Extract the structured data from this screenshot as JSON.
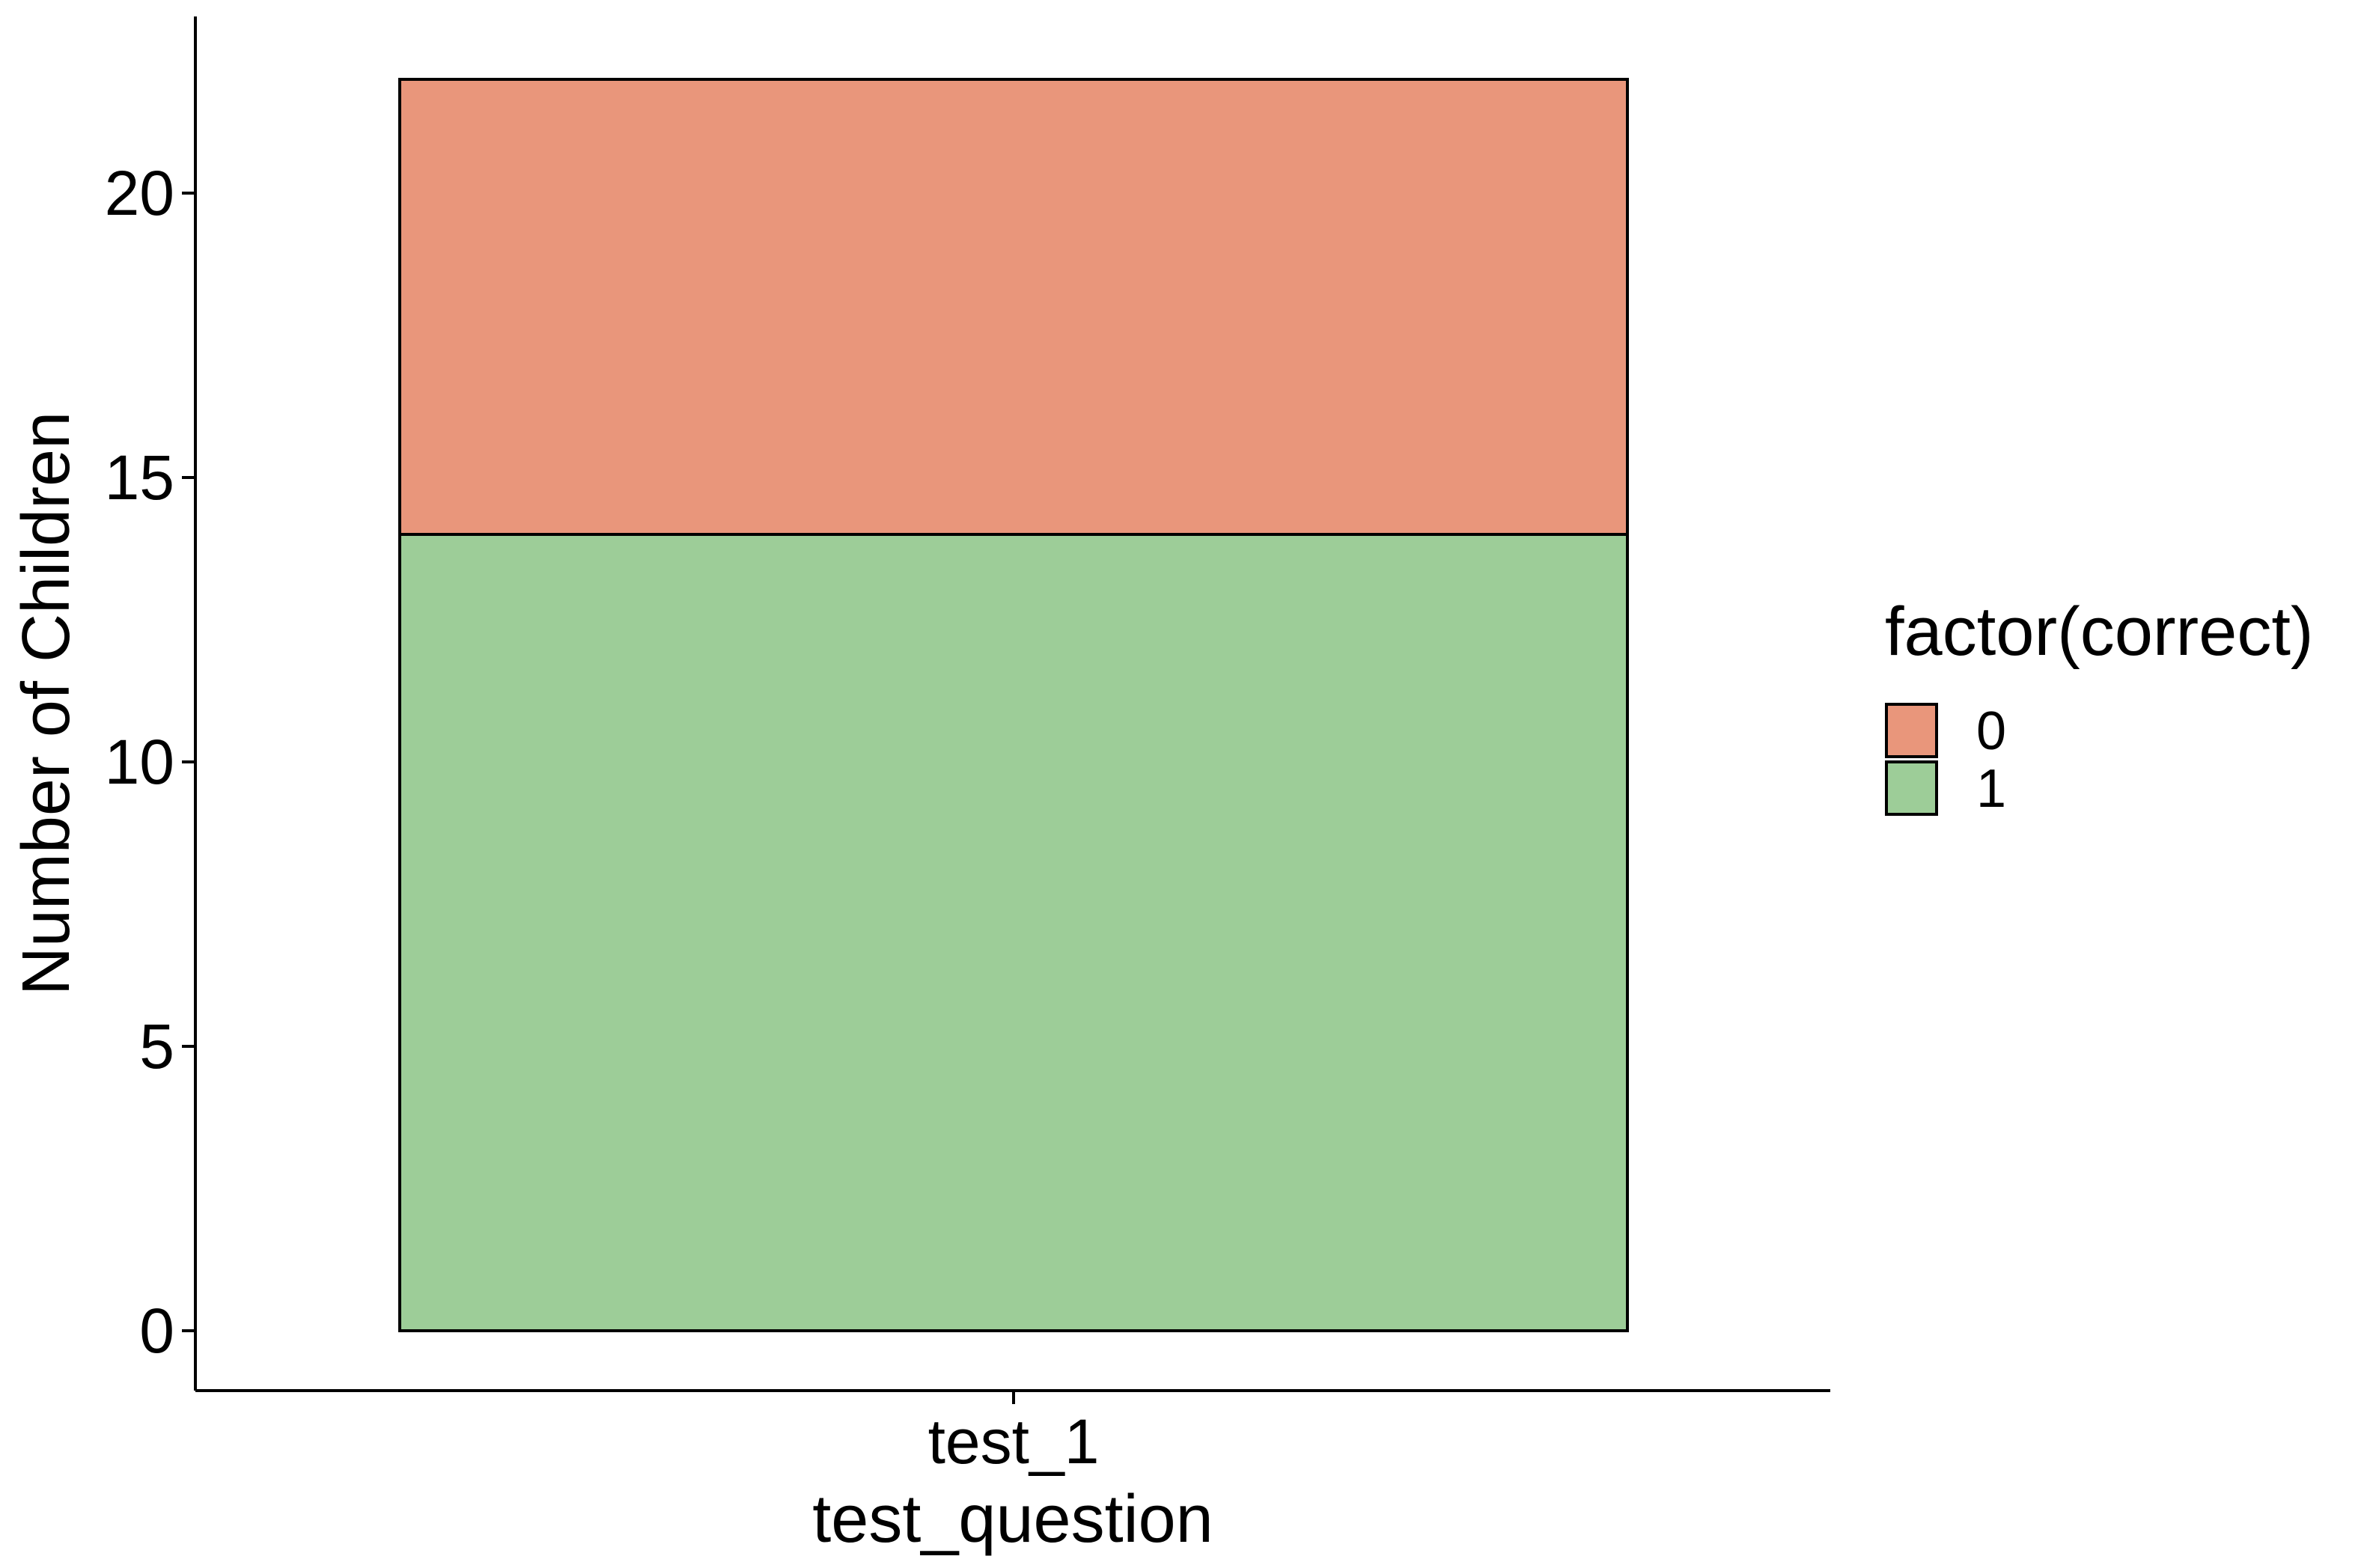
{
  "chart_data": {
    "type": "bar",
    "stacked": true,
    "categories": [
      "test_1"
    ],
    "series": [
      {
        "name": "1",
        "values": [
          14
        ],
        "color": "#9DCD98"
      },
      {
        "name": "0",
        "values": [
          8
        ],
        "color": "#E9967B"
      }
    ],
    "xlabel": "test_question",
    "ylabel": "Number of Children",
    "ylim": [
      0,
      22
    ],
    "yticks": [
      0,
      5,
      10,
      15,
      20
    ],
    "grid": false,
    "legend": {
      "title": "factor(correct)",
      "placement": "right",
      "entries": [
        {
          "label": "0",
          "color": "#E9967B"
        },
        {
          "label": "1",
          "color": "#9DCD98"
        }
      ]
    }
  }
}
